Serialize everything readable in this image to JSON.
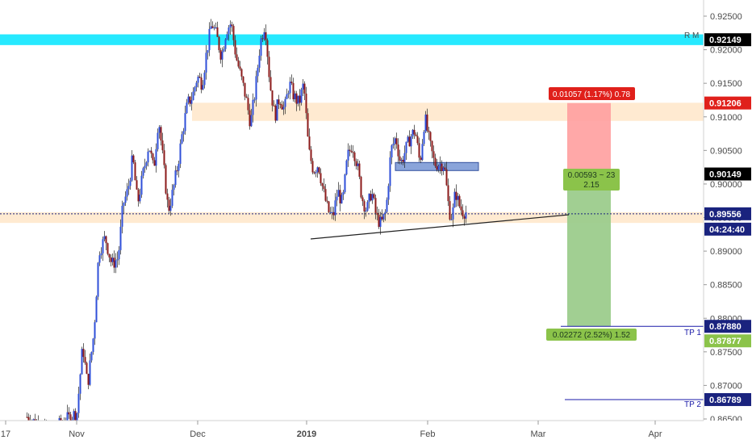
{
  "chart_data": {
    "type": "candlestick",
    "ylim": [
      0.8645,
      0.9265
    ],
    "y_ticks": [
      "0.92500",
      "0.92000",
      "0.91500",
      "0.91000",
      "0.90500",
      "0.90000",
      "0.89500",
      "0.89000",
      "0.88500",
      "0.88000",
      "0.87500",
      "0.87000",
      "0.86500"
    ],
    "x_labels": [
      "17",
      "Nov",
      "Dec",
      "2019",
      "Feb",
      "Mar",
      "Apr"
    ],
    "price_tags": [
      {
        "value": "0.92149",
        "color": "#000000"
      },
      {
        "value": "0.91206",
        "color": "#e0201b"
      },
      {
        "value": "0.90149",
        "color": "#000000"
      },
      {
        "value": "0.89556",
        "color": "#1a237e"
      },
      {
        "value": "04:24:40",
        "color": "#1a237e"
      },
      {
        "value": "0.87880",
        "color": "#1a237e"
      },
      {
        "value": "0.87877",
        "color": "#8bc34a"
      },
      {
        "value": "0.86789",
        "color": "#1a237e"
      }
    ],
    "annotations": {
      "rm_label": "R M",
      "tp1_label": "TP 1",
      "tp2_label": "TP 2",
      "risk_box_text": "0.01057 (1.17%) 0.78",
      "entry_box_line1": "0.00593 ~ 23",
      "entry_box_line2": "2.15",
      "target_box_text": "0.02272 (2.52%) 1.52"
    },
    "levels": {
      "rm": 0.92149,
      "stop": 0.91206,
      "entry": 0.90149,
      "current": 0.89556,
      "tp1": 0.8788,
      "tp2": 0.86789,
      "supply_zone": [
        0.9094,
        0.9121
      ],
      "demand_zone": [
        0.8942,
        0.8958
      ],
      "small_zone": [
        0.902,
        0.9032
      ]
    },
    "colors": {
      "up": "#2f4fd8",
      "down": "#8b1a1a",
      "rm_band": "#00e5ff",
      "zone": "#ffe6c9",
      "risk": "#ff9e9e",
      "reward": "#9ccc8c",
      "tp_line": "#1a1aa8"
    },
    "candles_x_range": [
      0,
      578
    ],
    "key_points": [
      [
        33,
        0.8653
      ],
      [
        60,
        0.863
      ],
      [
        95,
        0.866
      ],
      [
        102,
        0.876
      ],
      [
        108,
        0.87
      ],
      [
        116,
        0.878
      ],
      [
        122,
        0.89
      ],
      [
        130,
        0.892
      ],
      [
        138,
        0.888
      ],
      [
        146,
        0.889
      ],
      [
        152,
        0.897
      ],
      [
        158,
        0.899
      ],
      [
        164,
        0.904
      ],
      [
        170,
        0.897
      ],
      [
        176,
        0.901
      ],
      [
        184,
        0.906
      ],
      [
        190,
        0.902
      ],
      [
        196,
        0.91
      ],
      [
        202,
        0.903
      ],
      [
        208,
        0.896
      ],
      [
        214,
        0.899
      ],
      [
        220,
        0.903
      ],
      [
        226,
        0.908
      ],
      [
        232,
        0.912
      ],
      [
        238,
        0.913
      ],
      [
        244,
        0.916
      ],
      [
        250,
        0.915
      ],
      [
        256,
        0.92
      ],
      [
        262,
        0.924
      ],
      [
        268,
        0.922
      ],
      [
        274,
        0.919
      ],
      [
        280,
        0.923
      ],
      [
        286,
        0.924
      ],
      [
        292,
        0.919
      ],
      [
        298,
        0.916
      ],
      [
        304,
        0.913
      ],
      [
        310,
        0.909
      ],
      [
        316,
        0.914
      ],
      [
        322,
        0.921
      ],
      [
        328,
        0.924
      ],
      [
        334,
        0.915
      ],
      [
        340,
        0.91
      ],
      [
        346,
        0.913
      ],
      [
        352,
        0.911
      ],
      [
        358,
        0.915
      ],
      [
        364,
        0.913
      ],
      [
        370,
        0.912
      ],
      [
        376,
        0.915
      ],
      [
        382,
        0.905
      ],
      [
        388,
        0.902
      ],
      [
        394,
        0.903
      ],
      [
        400,
        0.899
      ],
      [
        406,
        0.896
      ],
      [
        412,
        0.895
      ],
      [
        418,
        0.899
      ],
      [
        424,
        0.897
      ],
      [
        430,
        0.904
      ],
      [
        436,
        0.906
      ],
      [
        442,
        0.903
      ],
      [
        448,
        0.898
      ],
      [
        454,
        0.896
      ],
      [
        460,
        0.899
      ],
      [
        466,
        0.895
      ],
      [
        472,
        0.894
      ],
      [
        478,
        0.896
      ],
      [
        484,
        0.905
      ],
      [
        490,
        0.907
      ],
      [
        496,
        0.903
      ],
      [
        502,
        0.905
      ],
      [
        508,
        0.907
      ],
      [
        514,
        0.908
      ],
      [
        520,
        0.903
      ],
      [
        526,
        0.91
      ],
      [
        532,
        0.906
      ],
      [
        538,
        0.903
      ],
      [
        544,
        0.903
      ],
      [
        550,
        0.903
      ],
      [
        556,
        0.896
      ],
      [
        560,
        0.895
      ],
      [
        564,
        0.899
      ],
      [
        568,
        0.897
      ],
      [
        572,
        0.896
      ],
      [
        578,
        0.8958
      ]
    ]
  }
}
